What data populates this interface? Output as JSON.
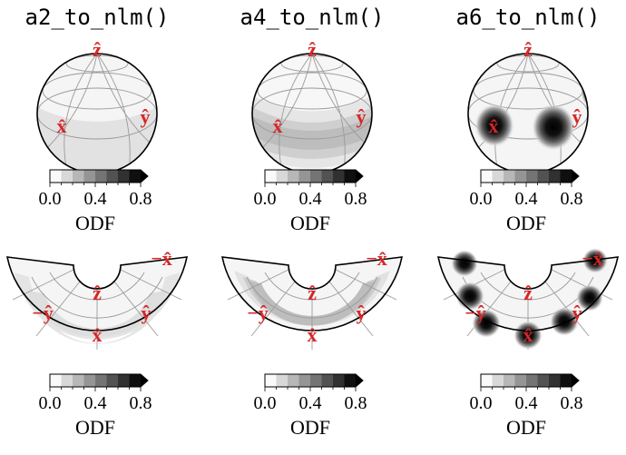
{
  "titles": [
    "a2_to_nlm()",
    "a4_to_nlm()",
    "a6_to_nlm()"
  ],
  "axis_labels": {
    "z": "ẑ",
    "x": "x̂",
    "y": "ŷ",
    "neg_x": "−x̂",
    "neg_y": "−ŷ"
  },
  "colorbar": {
    "label": "ODF",
    "ticks": [
      "0.0",
      "0.4",
      "0.8"
    ],
    "range": [
      0,
      0.8
    ],
    "levels": 8,
    "colormap": "Greys"
  },
  "colors": {
    "axis_label": "#d62728",
    "grid": "#9a9a9a",
    "outline": "#000000"
  }
}
